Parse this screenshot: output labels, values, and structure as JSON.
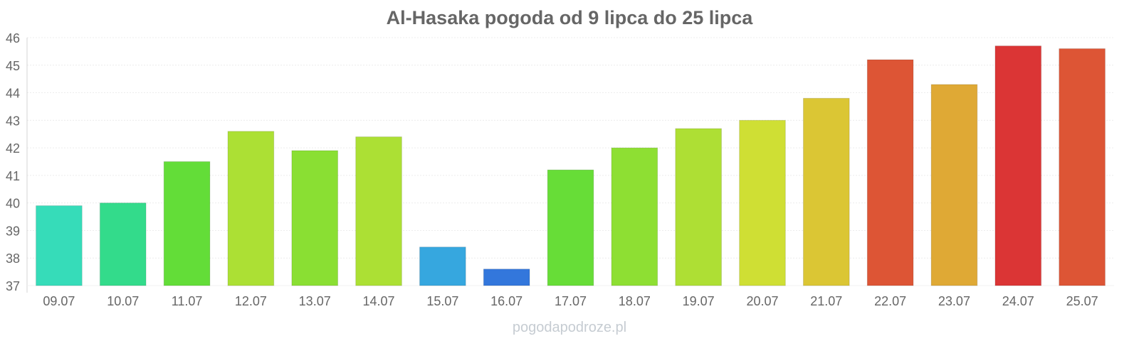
{
  "chart_data": {
    "type": "bar",
    "title": "Al-Hasaka pogoda od 9 lipca do 25 lipca",
    "xlabel": "",
    "ylabel": "",
    "ylim": [
      37,
      46
    ],
    "yticks": [
      37,
      38,
      39,
      40,
      41,
      42,
      43,
      44,
      45,
      46
    ],
    "grid": true,
    "categories": [
      "09.07",
      "10.07",
      "11.07",
      "12.07",
      "13.07",
      "14.07",
      "15.07",
      "16.07",
      "17.07",
      "18.07",
      "19.07",
      "20.07",
      "21.07",
      "22.07",
      "23.07",
      "24.07",
      "25.07"
    ],
    "values": [
      39.9,
      40.0,
      41.5,
      42.6,
      41.9,
      42.4,
      38.4,
      37.6,
      41.2,
      42.0,
      42.7,
      43.0,
      43.8,
      45.2,
      44.3,
      45.7,
      45.6
    ],
    "colors": [
      "#36dcb9",
      "#33db8b",
      "#63dd38",
      "#ace034",
      "#8adf33",
      "#ace034",
      "#36a7df",
      "#3377dc",
      "#67dd37",
      "#8edf33",
      "#aedf34",
      "#cfdf34",
      "#dbc634",
      "#dd5535",
      "#dfa935",
      "#db3535",
      "#dd5535"
    ]
  },
  "watermark": "pogodapodroze.pl"
}
